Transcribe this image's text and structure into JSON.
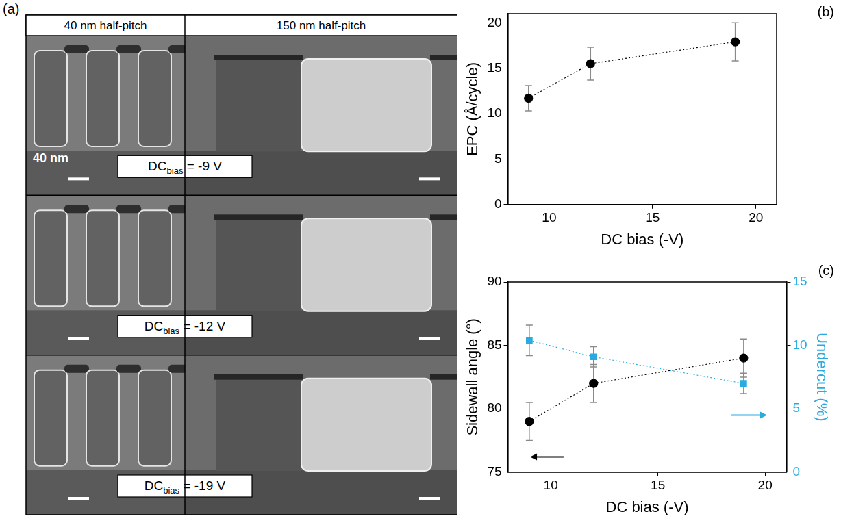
{
  "panel_a": {
    "panel": "(a)",
    "columns": [
      "40 nm half-pitch",
      "150 nm half-pitch"
    ],
    "scale_bar": "40 nm",
    "rows": [
      {
        "label": "DC",
        "label_subscript": "bias",
        "label_value": "= -9 V"
      },
      {
        "label": "DC",
        "label_subscript": "bias",
        "label_value": "= -12 V"
      },
      {
        "label": "DC",
        "label_subscript": "bias",
        "label_value": "= -19 V"
      }
    ]
  },
  "chart_data": [
    {
      "panel": "(b)",
      "type": "scatter",
      "x_label": "DC bias (-V)",
      "y_label": "EPC (Å/cycle)",
      "x": [
        9,
        12,
        19
      ],
      "xlim": [
        8,
        21
      ],
      "xticks": [
        10,
        15,
        20
      ],
      "ylim": [
        0,
        21
      ],
      "yticks": [
        0,
        5,
        10,
        15,
        20
      ],
      "grid": false,
      "series": [
        {
          "values": [
            11.7,
            15.5,
            17.9
          ],
          "errors": [
            1.4,
            1.8,
            2.1
          ],
          "color": "#000000",
          "marker": "circle",
          "line_style": "dotted"
        }
      ]
    },
    {
      "panel": "(c)",
      "type": "scatter",
      "x_label": "DC bias (-V)",
      "y_label": "Sidewall angle (°)",
      "y2_label": "Undercut (%)",
      "x": [
        9,
        12,
        19
      ],
      "xlim": [
        8,
        21
      ],
      "xticks": [
        10,
        15,
        20
      ],
      "ylim": [
        75,
        90
      ],
      "yticks": [
        75,
        80,
        85,
        90
      ],
      "y2lim": [
        0,
        15
      ],
      "y2ticks": [
        0,
        5,
        10,
        15
      ],
      "grid": false,
      "series": [
        {
          "values": [
            79,
            82,
            84
          ],
          "errors": [
            1.5,
            1.5,
            1.5
          ],
          "color": "#000000",
          "marker": "circle",
          "line_style": "dotted"
        },
        {
          "values": [
            10.4,
            9.1,
            7.0
          ],
          "errors": [
            1.2,
            0.8,
            0.8
          ],
          "color": "#29abe2",
          "marker": "square",
          "line_style": "dotted",
          "axis": "y2"
        }
      ]
    }
  ]
}
